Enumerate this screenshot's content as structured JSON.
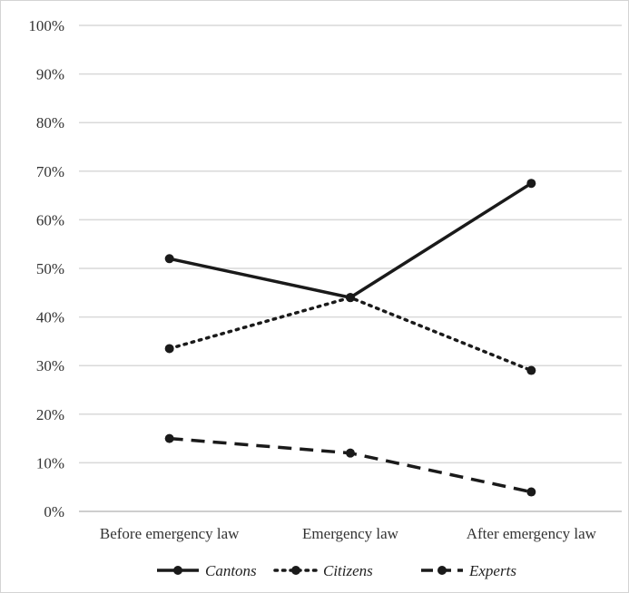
{
  "chart_data": {
    "type": "line",
    "title": "",
    "xlabel": "",
    "ylabel": "",
    "categories": [
      "Before emergency law",
      "Emergency law",
      "After emergency law"
    ],
    "y_ticks": [
      "0%",
      "10%",
      "20%",
      "30%",
      "40%",
      "50%",
      "60%",
      "70%",
      "80%",
      "90%",
      "100%"
    ],
    "ylim": [
      0,
      100
    ],
    "y_unit": "%",
    "grid": "horizontal",
    "legend_position": "bottom",
    "series": [
      {
        "name": "Cantons",
        "values": [
          52,
          44,
          67.5
        ],
        "line_style": "solid",
        "color": "#1a1a1a"
      },
      {
        "name": "Citizens",
        "values": [
          33.5,
          44,
          29
        ],
        "line_style": "dotted",
        "color": "#1a1a1a"
      },
      {
        "name": "Experts",
        "values": [
          15,
          12,
          4
        ],
        "line_style": "dashed",
        "color": "#1a1a1a"
      }
    ]
  }
}
